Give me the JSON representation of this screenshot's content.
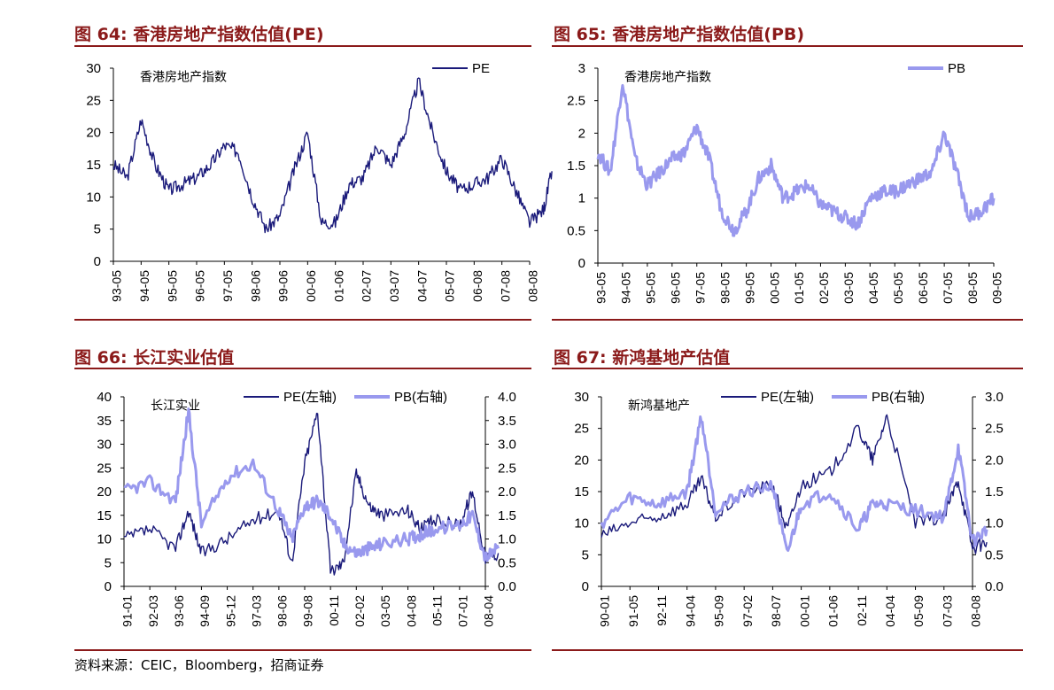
{
  "figures": [
    {
      "title": "图  64:  香港房地产指数估值(PE)"
    },
    {
      "title": "图  65:  香港房地产指数估值(PB)"
    },
    {
      "title": "图  66:  长江实业估值"
    },
    {
      "title": "图  67:  新鸿基地产估值"
    }
  ],
  "source": "资料来源：CEIC，Bloomberg，招商证券",
  "colors": {
    "pe": "#1a1a7a",
    "pb": "#9999ee",
    "title": "#8b1a1a"
  },
  "chart_data": [
    {
      "type": "line",
      "inner_label": "香港房地产指数",
      "legend": [
        "PE"
      ],
      "ylim": [
        0,
        30
      ],
      "yticks": [
        "0",
        "5",
        "10",
        "15",
        "20",
        "25",
        "30"
      ],
      "xticks": [
        "93-05",
        "94-05",
        "95-05",
        "96-05",
        "97-05",
        "98-06",
        "99-06",
        "00-06",
        "01-06",
        "02-07",
        "03-07",
        "04-07",
        "05-07",
        "06-08",
        "07-08",
        "08-08"
      ],
      "x": [
        0,
        0.5,
        1,
        1.5,
        2,
        2.5,
        3,
        3.5,
        4,
        4.5,
        5,
        5.5,
        6,
        6.5,
        7,
        7.5,
        8,
        8.5,
        9,
        9.5,
        10,
        10.5,
        11,
        11.5,
        12,
        12.5,
        13,
        13.5,
        14,
        14.5,
        15,
        15.5,
        15.8
      ],
      "series": [
        {
          "name": "PE",
          "values": [
            15,
            13,
            22,
            15,
            11,
            12,
            13,
            15,
            18,
            17,
            10,
            5,
            7,
            14,
            20,
            6,
            6,
            12,
            13,
            18,
            15,
            20,
            28,
            20,
            14,
            11,
            12,
            13,
            16,
            11,
            6,
            8,
            14
          ]
        }
      ]
    },
    {
      "type": "line",
      "inner_label": "香港房地产指数",
      "legend": [
        "PB"
      ],
      "ylim": [
        0,
        3
      ],
      "yticks": [
        "0",
        "0.5",
        "1",
        "1.5",
        "2",
        "2.5",
        "3"
      ],
      "xticks": [
        "93-05",
        "94-05",
        "95-05",
        "96-05",
        "97-05",
        "98-05",
        "99-05",
        "00-05",
        "01-05",
        "02-05",
        "03-05",
        "04-05",
        "05-05",
        "06-05",
        "07-05",
        "08-05",
        "09-05"
      ],
      "x": [
        0,
        0.5,
        1,
        1.5,
        2,
        2.5,
        3,
        3.5,
        4,
        4.5,
        5,
        5.5,
        6,
        6.5,
        7,
        7.5,
        8,
        8.5,
        9,
        9.5,
        10,
        10.5,
        11,
        11.5,
        12,
        12.5,
        13,
        13.5,
        14,
        14.5,
        15,
        15.5,
        16
      ],
      "series": [
        {
          "name": "PB",
          "values": [
            1.7,
            1.4,
            2.8,
            1.6,
            1.2,
            1.4,
            1.6,
            1.7,
            2.1,
            1.6,
            0.8,
            0.5,
            0.8,
            1.3,
            1.5,
            1.0,
            1.1,
            1.2,
            0.9,
            0.8,
            0.7,
            0.6,
            1.0,
            1.1,
            1.1,
            1.2,
            1.3,
            1.4,
            2.0,
            1.4,
            0.7,
            0.8,
            1.0
          ]
        }
      ]
    },
    {
      "type": "line",
      "inner_label": "长江实业",
      "legend": [
        "PE(左轴)",
        "PB(右轴)"
      ],
      "ylim": [
        0,
        40
      ],
      "y2lim": [
        0,
        4
      ],
      "yticks": [
        "0",
        "5",
        "10",
        "15",
        "20",
        "25",
        "30",
        "35",
        "40"
      ],
      "y2ticks": [
        "0.0",
        "0.5",
        "1.0",
        "1.5",
        "2.0",
        "2.5",
        "3.0",
        "3.5",
        "4.0"
      ],
      "xticks": [
        "91-01",
        "92-03",
        "93-06",
        "94-09",
        "95-12",
        "97-03",
        "98-06",
        "99-08",
        "00-11",
        "02-02",
        "03-05",
        "04-08",
        "05-11",
        "07-01",
        "08-04"
      ],
      "x": [
        0,
        1,
        2,
        2.5,
        3,
        4,
        5,
        6,
        6.5,
        7,
        7.5,
        8,
        8.5,
        9,
        9.5,
        10,
        11,
        11.5,
        12,
        13,
        13.5,
        14,
        14.5
      ],
      "series": [
        {
          "name": "PE(左轴)",
          "values": [
            10,
            12,
            8,
            16,
            7,
            10,
            14,
            16,
            5,
            26,
            37,
            3,
            5,
            24,
            17,
            15,
            16,
            12,
            14,
            13,
            20,
            6,
            7
          ]
        },
        {
          "name": "PB(右轴)",
          "values": [
            2.0,
            2.2,
            1.8,
            3.7,
            1.3,
            2.3,
            2.6,
            1.6,
            1.0,
            1.7,
            1.8,
            1.5,
            0.9,
            0.7,
            0.8,
            0.9,
            1.0,
            1.1,
            1.2,
            1.3,
            1.5,
            0.6,
            0.8
          ]
        }
      ]
    },
    {
      "type": "line",
      "inner_label": "新鸿基地产",
      "legend": [
        "PE(左轴)",
        "PB(右轴)"
      ],
      "ylim": [
        0,
        30
      ],
      "y2lim": [
        0,
        3
      ],
      "yticks": [
        "0",
        "5",
        "10",
        "15",
        "20",
        "25",
        "30"
      ],
      "y2ticks": [
        "0.0",
        "0.5",
        "1.0",
        "1.5",
        "2.0",
        "2.5",
        "3.0"
      ],
      "xticks": [
        "90-01",
        "91-05",
        "92-11",
        "94-04",
        "95-09",
        "97-02",
        "98-07",
        "00-01",
        "01-06",
        "02-11",
        "04-04",
        "05-09",
        "07-03",
        "08-08"
      ],
      "x": [
        0,
        1,
        2,
        3,
        3.5,
        4,
        5,
        6,
        6.5,
        7,
        8,
        9,
        9.5,
        10,
        11,
        12,
        12.5,
        13,
        13.5
      ],
      "series": [
        {
          "name": "PE(左轴)",
          "values": [
            8,
            10,
            11,
            13,
            17,
            11,
            15,
            16,
            9,
            16,
            18,
            25,
            20,
            27,
            10,
            11,
            17,
            6,
            7
          ]
        },
        {
          "name": "PB(右轴)",
          "values": [
            1.0,
            1.4,
            1.3,
            1.5,
            2.7,
            1.2,
            1.5,
            1.6,
            0.5,
            1.3,
            1.5,
            0.9,
            1.3,
            1.3,
            1.2,
            1.1,
            2.2,
            0.7,
            0.9
          ]
        }
      ]
    }
  ]
}
